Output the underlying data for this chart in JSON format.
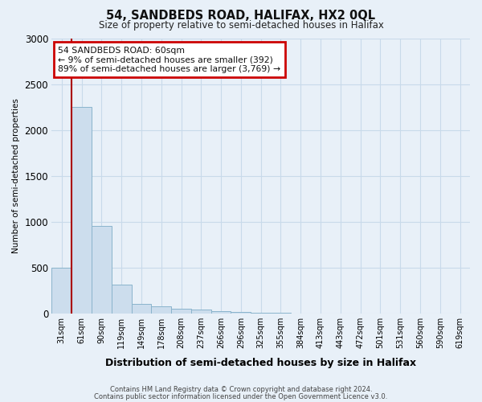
{
  "title1": "54, SANDBEDS ROAD, HALIFAX, HX2 0QL",
  "title2": "Size of property relative to semi-detached houses in Halifax",
  "xlabel": "Distribution of semi-detached houses by size in Halifax",
  "ylabel": "Number of semi-detached properties",
  "footer1": "Contains HM Land Registry data © Crown copyright and database right 2024.",
  "footer2": "Contains public sector information licensed under the Open Government Licence v3.0.",
  "annotation_title": "54 SANDBEDS ROAD: 60sqm",
  "annotation_line1": "← 9% of semi-detached houses are smaller (392)",
  "annotation_line2": "89% of semi-detached houses are larger (3,769) →",
  "bar_color": "#ccdded",
  "bar_edge_color": "#8ab4cc",
  "grid_color": "#c8daea",
  "background_color": "#e8f0f8",
  "annotation_box_facecolor": "#ffffff",
  "annotation_border_color": "#cc0000",
  "vline_color": "#aa0000",
  "categories": [
    "31sqm",
    "61sqm",
    "90sqm",
    "119sqm",
    "149sqm",
    "178sqm",
    "208sqm",
    "237sqm",
    "266sqm",
    "296sqm",
    "325sqm",
    "355sqm",
    "384sqm",
    "413sqm",
    "443sqm",
    "472sqm",
    "501sqm",
    "531sqm",
    "560sqm",
    "590sqm",
    "619sqm"
  ],
  "values": [
    500,
    2250,
    950,
    310,
    100,
    75,
    55,
    40,
    28,
    18,
    10,
    6,
    3,
    2,
    1,
    1,
    0,
    0,
    0,
    0,
    0
  ],
  "ylim": [
    0,
    3000
  ],
  "yticks": [
    0,
    500,
    1000,
    1500,
    2000,
    2500,
    3000
  ],
  "vline_position": 0.5
}
